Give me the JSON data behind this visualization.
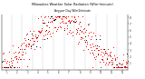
{
  "title": "Milwaukee Weather Solar Radiation (W/m²/minute)",
  "title2": "Avg per Day W/m2/minute",
  "ylim": [
    0,
    8.5
  ],
  "xlim": [
    0,
    365
  ],
  "background_color": "#ffffff",
  "dot_color_red": "#ff0000",
  "dot_color_black": "#000000",
  "grid_color": "#888888",
  "n_points": 365,
  "seed": 42,
  "month_boundaries": [
    31,
    59,
    90,
    120,
    151,
    181,
    212,
    243,
    273,
    304,
    334
  ],
  "month_mids": [
    15,
    45,
    75,
    105,
    135,
    165,
    195,
    227,
    258,
    288,
    319,
    350
  ],
  "month_labels": [
    "1",
    "2",
    "3",
    "4",
    "5",
    "6",
    "7",
    "8",
    "9",
    "10",
    "11",
    "12"
  ],
  "yticks": [
    1,
    2,
    3,
    4,
    5,
    6,
    7,
    8
  ],
  "ytick_labels": [
    "1",
    "2",
    "3",
    "4",
    "5",
    "6",
    "7",
    "8"
  ]
}
